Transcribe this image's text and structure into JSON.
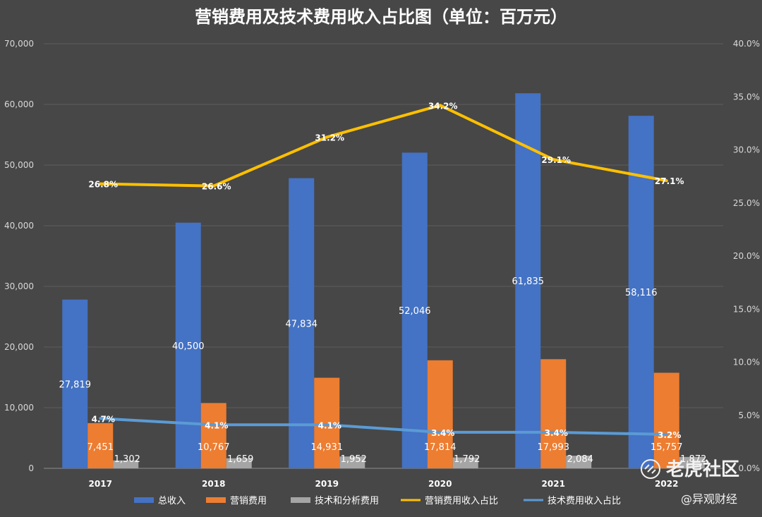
{
  "chart_data": {
    "type": "bar",
    "title": "营销费用及技术费用收入占比图（单位：百万元）",
    "categories": [
      "2017",
      "2018",
      "2019",
      "2020",
      "2021",
      "2022"
    ],
    "y_left": {
      "min": 0,
      "max": 70000,
      "step": 10000,
      "tick_labels": [
        "0",
        "10,000",
        "20,000",
        "30,000",
        "40,000",
        "50,000",
        "60,000",
        "70,000"
      ]
    },
    "y_right": {
      "min": 0,
      "max": 40,
      "step": 5,
      "tick_labels": [
        "0.0%",
        "5.0%",
        "10.0%",
        "15.0%",
        "20.0%",
        "25.0%",
        "30.0%",
        "35.0%",
        "40.0%"
      ]
    },
    "bar_series": [
      {
        "name": "总收入",
        "color": "#4472c4",
        "values": [
          27819,
          40500,
          47834,
          52046,
          61835,
          58116
        ],
        "labels": [
          "27,819",
          "40,500",
          "47,834",
          "52,046",
          "61,835",
          "58,116"
        ]
      },
      {
        "name": "营销费用",
        "color": "#ed7d31",
        "values": [
          7451,
          10767,
          14931,
          17814,
          17993,
          15757
        ],
        "labels": [
          "7,451",
          "10,767",
          "14,931",
          "17,814",
          "17,993",
          "15,757"
        ]
      },
      {
        "name": "技术和分析费用",
        "color": "#a5a5a5",
        "values": [
          1302,
          1659,
          1952,
          1792,
          2084,
          1872
        ],
        "labels": [
          "1,302",
          "1,659",
          "1,952",
          "1,792",
          "2,084",
          "1,872"
        ]
      }
    ],
    "line_series": [
      {
        "name": "营销费用收入占比",
        "color": "#ffc000",
        "values": [
          26.8,
          26.6,
          31.2,
          34.2,
          29.1,
          27.1
        ],
        "labels": [
          "26.8%",
          "26.6%",
          "31.2%",
          "34.2%",
          "29.1%",
          "27.1%"
        ]
      },
      {
        "name": "技术费用收入占比",
        "color": "#5b9bd5",
        "values": [
          4.7,
          4.1,
          4.1,
          3.4,
          3.4,
          3.2
        ],
        "labels": [
          "4.7%",
          "4.1%",
          "4.1%",
          "3.4%",
          "3.4%",
          "3.2%"
        ]
      }
    ],
    "legend_position": "bottom",
    "grid": true
  },
  "watermarks": {
    "brand": "老虎社区",
    "handle": "@异观财经"
  }
}
